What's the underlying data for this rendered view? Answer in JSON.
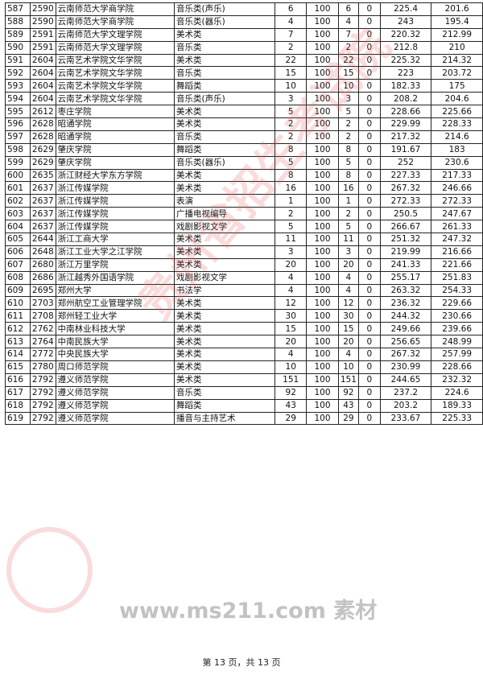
{
  "rows": [
    [
      "587",
      "2590",
      "云南师范大学商学院",
      "音乐类(声乐)",
      "6",
      "100",
      "6",
      "0",
      "225.4",
      "201.6"
    ],
    [
      "588",
      "2590",
      "云南师范大学商学院",
      "音乐类(器乐)",
      "4",
      "100",
      "4",
      "0",
      "243",
      "195.4"
    ],
    [
      "589",
      "2591",
      "云南师范大学文理学院",
      "美术类",
      "7",
      "100",
      "7",
      "0",
      "220.32",
      "212.99"
    ],
    [
      "590",
      "2591",
      "云南师范大学文理学院",
      "音乐类",
      "2",
      "100",
      "2",
      "0",
      "212.8",
      "210"
    ],
    [
      "591",
      "2604",
      "云南艺术学院文华学院",
      "美术类",
      "22",
      "100",
      "22",
      "0",
      "225.32",
      "214.32"
    ],
    [
      "592",
      "2604",
      "云南艺术学院文华学院",
      "音乐类",
      "15",
      "100",
      "15",
      "0",
      "223",
      "203.72"
    ],
    [
      "593",
      "2604",
      "云南艺术学院文华学院",
      "舞蹈类",
      "10",
      "100",
      "10",
      "0",
      "182.33",
      "175"
    ],
    [
      "594",
      "2604",
      "云南艺术学院文华学院",
      "音乐类(声乐)",
      "3",
      "100",
      "3",
      "0",
      "208.2",
      "204.6"
    ],
    [
      "595",
      "2612",
      "枣庄学院",
      "美术类",
      "5",
      "100",
      "5",
      "0",
      "228.66",
      "225.66"
    ],
    [
      "596",
      "2628",
      "昭通学院",
      "美术类",
      "2",
      "100",
      "2",
      "0",
      "229.99",
      "228.33"
    ],
    [
      "597",
      "2628",
      "昭通学院",
      "音乐类",
      "2",
      "100",
      "2",
      "0",
      "217.32",
      "214.6"
    ],
    [
      "598",
      "2629",
      "肇庆学院",
      "舞蹈类",
      "8",
      "100",
      "8",
      "0",
      "191.67",
      "183"
    ],
    [
      "599",
      "2629",
      "肇庆学院",
      "音乐类(器乐)",
      "5",
      "100",
      "5",
      "0",
      "252",
      "230.6"
    ],
    [
      "600",
      "2635",
      "浙江财经大学东方学院",
      "美术类",
      "8",
      "100",
      "8",
      "0",
      "227.33",
      "217.33"
    ],
    [
      "601",
      "2637",
      "浙江传媒学院",
      "美术类",
      "16",
      "100",
      "16",
      "0",
      "267.32",
      "246.66"
    ],
    [
      "602",
      "2637",
      "浙江传媒学院",
      "表演",
      "1",
      "100",
      "1",
      "0",
      "272.33",
      "272.33"
    ],
    [
      "603",
      "2637",
      "浙江传媒学院",
      "广播电视编导",
      "2",
      "100",
      "2",
      "0",
      "250.5",
      "247.67"
    ],
    [
      "604",
      "2637",
      "浙江传媒学院",
      "戏剧影视文学",
      "5",
      "100",
      "5",
      "0",
      "266.67",
      "261.33"
    ],
    [
      "605",
      "2644",
      "浙江工商大学",
      "美术类",
      "11",
      "100",
      "11",
      "0",
      "251.32",
      "247.32"
    ],
    [
      "606",
      "2648",
      "浙江工业大学之江学院",
      "美术类",
      "3",
      "100",
      "3",
      "0",
      "219.99",
      "216.66"
    ],
    [
      "607",
      "2680",
      "浙江万里学院",
      "美术类",
      "20",
      "100",
      "20",
      "0",
      "241.33",
      "221.66"
    ],
    [
      "608",
      "2686",
      "浙江越秀外国语学院",
      "戏剧影视文学",
      "4",
      "100",
      "4",
      "0",
      "255.17",
      "251.83"
    ],
    [
      "609",
      "2695",
      "郑州大学",
      "书法学",
      "4",
      "100",
      "4",
      "0",
      "263.32",
      "254.33"
    ],
    [
      "610",
      "2703",
      "郑州航空工业管理学院",
      "美术类",
      "12",
      "100",
      "12",
      "0",
      "236.32",
      "229.66"
    ],
    [
      "611",
      "2708",
      "郑州轻工业大学",
      "美术类",
      "30",
      "100",
      "30",
      "0",
      "244.32",
      "230.66"
    ],
    [
      "612",
      "2762",
      "中南林业科技大学",
      "美术类",
      "15",
      "100",
      "15",
      "0",
      "249.66",
      "239.66"
    ],
    [
      "613",
      "2764",
      "中南民族大学",
      "美术类",
      "20",
      "100",
      "20",
      "0",
      "256.65",
      "248.99"
    ],
    [
      "614",
      "2772",
      "中央民族大学",
      "美术类",
      "4",
      "100",
      "4",
      "0",
      "267.32",
      "257.99"
    ],
    [
      "615",
      "2780",
      "周口师范学院",
      "美术类",
      "10",
      "100",
      "10",
      "0",
      "230.99",
      "228.66"
    ],
    [
      "616",
      "2792",
      "遵义师范学院",
      "美术类",
      "151",
      "100",
      "151",
      "0",
      "244.65",
      "232.32"
    ],
    [
      "617",
      "2792",
      "遵义师范学院",
      "音乐类",
      "92",
      "100",
      "92",
      "0",
      "237.2",
      "224.6"
    ],
    [
      "618",
      "2792",
      "遵义师范学院",
      "舞蹈类",
      "43",
      "100",
      "43",
      "0",
      "203.2",
      "189.33"
    ],
    [
      "619",
      "2792",
      "遵义师范学院",
      "播音与主持艺术",
      "29",
      "100",
      "29",
      "0",
      "233.67",
      "225.33"
    ]
  ],
  "watermark": {
    "text": "贵州省招生考试院",
    "site": "www.ms211.com 素材",
    "color": "#e65a5a"
  },
  "footer": "第 13 页，共 13 页"
}
